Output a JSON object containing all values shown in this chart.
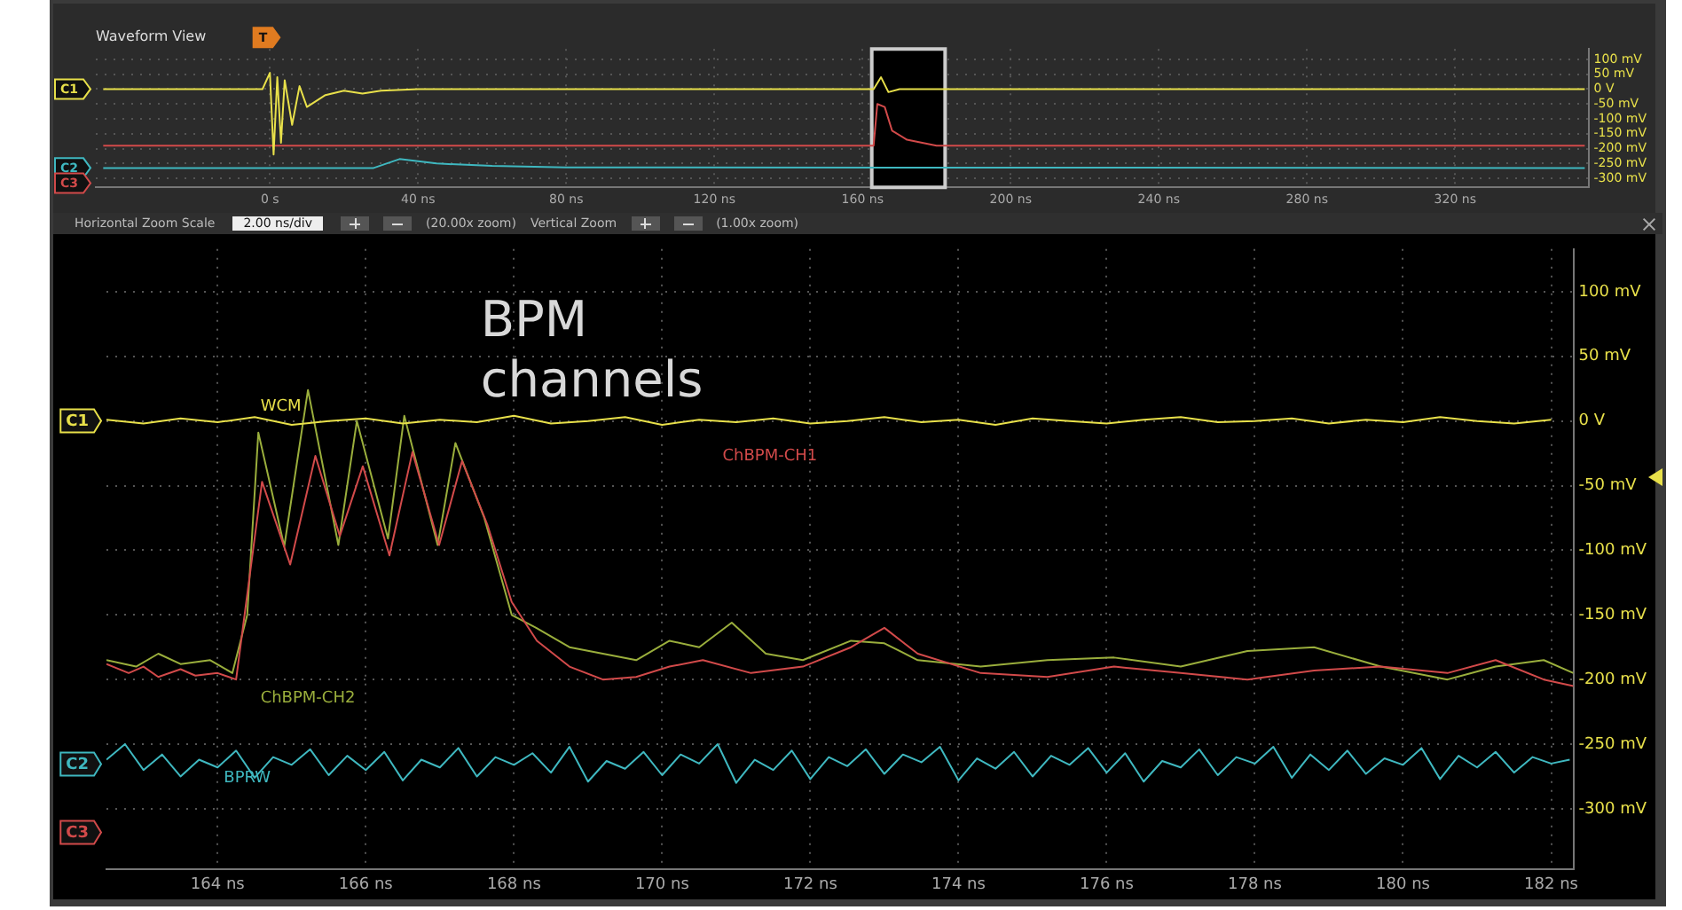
{
  "chart_data": [
    {
      "type": "line",
      "title": "Waveform View",
      "xlim": [
        -47,
        356
      ],
      "ylim": [
        -330,
        135
      ],
      "xticks": [
        {
          "value": 0,
          "label": "0 s"
        },
        {
          "value": 40,
          "label": "40 ns"
        },
        {
          "value": 80,
          "label": "80 ns"
        },
        {
          "value": 120,
          "label": "120 ns"
        },
        {
          "value": 160,
          "label": "160 ns"
        },
        {
          "value": 200,
          "label": "200 ns"
        },
        {
          "value": 240,
          "label": "240 ns"
        },
        {
          "value": 280,
          "label": "280 ns"
        },
        {
          "value": 320,
          "label": "320 ns"
        }
      ],
      "yticks": [
        {
          "value": 100,
          "label": "100 mV"
        },
        {
          "value": 50,
          "label": "50 mV"
        },
        {
          "value": 0,
          "label": "0 V"
        },
        {
          "value": -50,
          "label": "-50 mV"
        },
        {
          "value": -100,
          "label": "-100 mV"
        },
        {
          "value": -150,
          "label": "-150 mV"
        },
        {
          "value": -200,
          "label": "-200 mV"
        },
        {
          "value": -250,
          "label": "-250 mV"
        },
        {
          "value": -300,
          "label": "-300 mV"
        }
      ],
      "grid": true,
      "legend": false,
      "line_style": "solid",
      "marker": "none",
      "bands": [
        {
          "axis": "x",
          "from": 162.5,
          "to": 182.3,
          "color": "#000000"
        }
      ],
      "series": [
        {
          "color": "#e8e04a",
          "x": [
            -45,
            -20,
            -2,
            0,
            1,
            2,
            3,
            4,
            6,
            8,
            10,
            15,
            20,
            25,
            30,
            40,
            80,
            163,
            165,
            167,
            170,
            200,
            355
          ],
          "values": [
            0,
            0,
            0,
            55,
            -220,
            40,
            -180,
            30,
            -120,
            10,
            -60,
            -20,
            -5,
            -15,
            -5,
            0,
            0,
            0,
            40,
            -10,
            0,
            0,
            0
          ]
        },
        {
          "color": "#d24a4a",
          "x": [
            -45,
            100,
            163,
            164,
            166,
            168,
            172,
            180,
            355
          ],
          "values": [
            -190,
            -190,
            -190,
            -50,
            -60,
            -140,
            -170,
            -190,
            -190
          ]
        },
        {
          "color": "#3fb8c0",
          "x": [
            -45,
            28,
            35,
            45,
            60,
            80,
            355
          ],
          "values": [
            -265,
            -265,
            -235,
            -250,
            -258,
            -263,
            -265
          ]
        }
      ],
      "annotations": [
        "Horizontal Zoom Scale",
        "2.00 ns/div",
        "(20.00x zoom)",
        "Vertical Zoom",
        "(1.00x zoom)",
        "T",
        "C1",
        "C2",
        "C3"
      ]
    },
    {
      "type": "line",
      "xlim": [
        162.5,
        182.3
      ],
      "ylim": [
        -347,
        133
      ],
      "xticks": [
        {
          "value": 164,
          "label": "164 ns"
        },
        {
          "value": 166,
          "label": "166 ns"
        },
        {
          "value": 168,
          "label": "168 ns"
        },
        {
          "value": 170,
          "label": "170 ns"
        },
        {
          "value": 172,
          "label": "172 ns"
        },
        {
          "value": 174,
          "label": "174 ns"
        },
        {
          "value": 176,
          "label": "176 ns"
        },
        {
          "value": 178,
          "label": "178 ns"
        },
        {
          "value": 180,
          "label": "180 ns"
        },
        {
          "value": 182,
          "label": "182 ns"
        }
      ],
      "yticks": [
        {
          "value": 100,
          "label": "100 mV"
        },
        {
          "value": 50,
          "label": "50 mV"
        },
        {
          "value": 0,
          "label": "0 V"
        },
        {
          "value": -50,
          "label": "-50 mV"
        },
        {
          "value": -100,
          "label": "-100 mV"
        },
        {
          "value": -150,
          "label": "-150 mV"
        },
        {
          "value": -200,
          "label": "-200 mV"
        },
        {
          "value": -250,
          "label": "-250 mV"
        },
        {
          "value": -300,
          "label": "-300 mV"
        }
      ],
      "grid": true,
      "legend": false,
      "line_style": "solid",
      "marker": "none",
      "series": [
        {
          "name": "WCM",
          "color": "#e8e04a",
          "x": [
            162.5,
            163,
            163.5,
            164,
            164.5,
            165,
            165.5,
            166,
            166.5,
            167,
            167.5,
            168,
            168.5,
            169,
            169.5,
            170,
            170.5,
            171,
            171.5,
            172,
            172.5,
            173,
            173.5,
            174,
            174.5,
            175,
            175.5,
            176,
            176.5,
            177,
            177.5,
            178,
            178.5,
            179,
            179.5,
            180,
            180.5,
            181,
            181.5,
            182
          ],
          "values": [
            1,
            -2,
            2,
            -1,
            3,
            -3,
            0,
            2,
            -2,
            1,
            -1,
            4,
            -2,
            0,
            3,
            -3,
            1,
            -1,
            2,
            -2,
            0,
            3,
            -1,
            1,
            -3,
            2,
            0,
            -2,
            1,
            3,
            -1,
            0,
            2,
            -2,
            1,
            -1,
            3,
            0,
            -2,
            1
          ]
        },
        {
          "name": "ChBPM-CH1",
          "color": "#d24a4a",
          "x": [
            162.5,
            162.8,
            163,
            163.2,
            163.5,
            163.7,
            164,
            164.25,
            164.6,
            164.98,
            165.32,
            165.65,
            165.96,
            166.32,
            166.63,
            166.99,
            167.3,
            167.64,
            167.97,
            168.31,
            168.75,
            169.2,
            169.65,
            170.1,
            170.55,
            171.2,
            171.9,
            172.55,
            173,
            173.45,
            174.3,
            175.2,
            176.1,
            177,
            177.9,
            178.8,
            179.7,
            180.6,
            181.25,
            181.9,
            182.3
          ],
          "values": [
            -188,
            -195,
            -190,
            -198,
            -192,
            -197,
            -195,
            -200,
            -47,
            -111,
            -27,
            -89,
            -35,
            -104,
            -24,
            -96,
            -31,
            -80,
            -140,
            -170,
            -190,
            -200,
            -198,
            -190,
            -185,
            -195,
            -190,
            -175,
            -160,
            -180,
            -195,
            -198,
            -190,
            -195,
            -200,
            -193,
            -190,
            -195,
            -185,
            -200,
            -205
          ]
        },
        {
          "name": "ChBPM-CH2",
          "color": "#9aae3c",
          "x": [
            162.5,
            162.9,
            163.2,
            163.5,
            163.9,
            164.2,
            164.4,
            164.55,
            164.9,
            165.22,
            165.63,
            165.88,
            166.3,
            166.52,
            166.97,
            167.21,
            167.6,
            167.97,
            168.3,
            168.75,
            169.2,
            169.65,
            170.1,
            170.5,
            170.94,
            171.4,
            171.9,
            172.55,
            173,
            173.45,
            174.3,
            175.2,
            176.1,
            177,
            177.9,
            178.8,
            179.7,
            180.6,
            181.25,
            181.9,
            182.3
          ],
          "values": [
            -185,
            -190,
            -180,
            -188,
            -185,
            -195,
            -150,
            -9,
            -97,
            24,
            -96,
            0,
            -91,
            4,
            -96,
            -17,
            -75,
            -150,
            -160,
            -175,
            -180,
            -185,
            -170,
            -175,
            -156,
            -180,
            -185,
            -170,
            -172,
            -185,
            -190,
            -185,
            -183,
            -190,
            -178,
            -175,
            -190,
            -200,
            -190,
            -185,
            -195
          ]
        },
        {
          "name": "BPRW",
          "color": "#3fb8c0",
          "x": [
            162.5,
            162.75,
            163,
            163.25,
            163.5,
            163.75,
            164,
            164.25,
            164.5,
            164.75,
            165,
            165.25,
            165.5,
            165.75,
            166,
            166.25,
            166.5,
            166.75,
            167,
            167.25,
            167.5,
            167.75,
            168,
            168.25,
            168.5,
            168.75,
            169,
            169.25,
            169.5,
            169.75,
            170,
            170.25,
            170.5,
            170.75,
            171,
            171.25,
            171.5,
            171.75,
            172,
            172.25,
            172.5,
            172.75,
            173,
            173.25,
            173.5,
            173.75,
            174,
            174.25,
            174.5,
            174.75,
            175,
            175.25,
            175.5,
            175.75,
            176,
            176.25,
            176.5,
            176.75,
            177,
            177.25,
            177.5,
            177.75,
            178,
            178.25,
            178.5,
            178.75,
            179,
            179.25,
            179.5,
            179.75,
            180,
            180.25,
            180.5,
            180.75,
            181,
            181.25,
            181.5,
            181.75,
            182,
            182.25
          ],
          "values": [
            -262,
            -250,
            -270,
            -258,
            -275,
            -262,
            -268,
            -255,
            -276,
            -260,
            -266,
            -254,
            -274,
            -259,
            -270,
            -256,
            -278,
            -262,
            -268,
            -253,
            -275,
            -260,
            -266,
            -257,
            -272,
            -252,
            -279,
            -263,
            -269,
            -256,
            -274,
            -258,
            -265,
            -250,
            -280,
            -262,
            -270,
            -255,
            -277,
            -260,
            -267,
            -254,
            -273,
            -258,
            -264,
            -252,
            -278,
            -261,
            -269,
            -256,
            -275,
            -259,
            -266,
            -253,
            -272,
            -257,
            -279,
            -263,
            -268,
            -254,
            -274,
            -260,
            -265,
            -252,
            -276,
            -258,
            -270,
            -255,
            -273,
            -261,
            -266,
            -253,
            -277,
            -259,
            -268,
            -256,
            -272,
            -260,
            -265,
            -262
          ]
        }
      ],
      "annotations": [
        "BPM channels",
        "C1",
        "C2",
        "C3"
      ]
    }
  ]
}
